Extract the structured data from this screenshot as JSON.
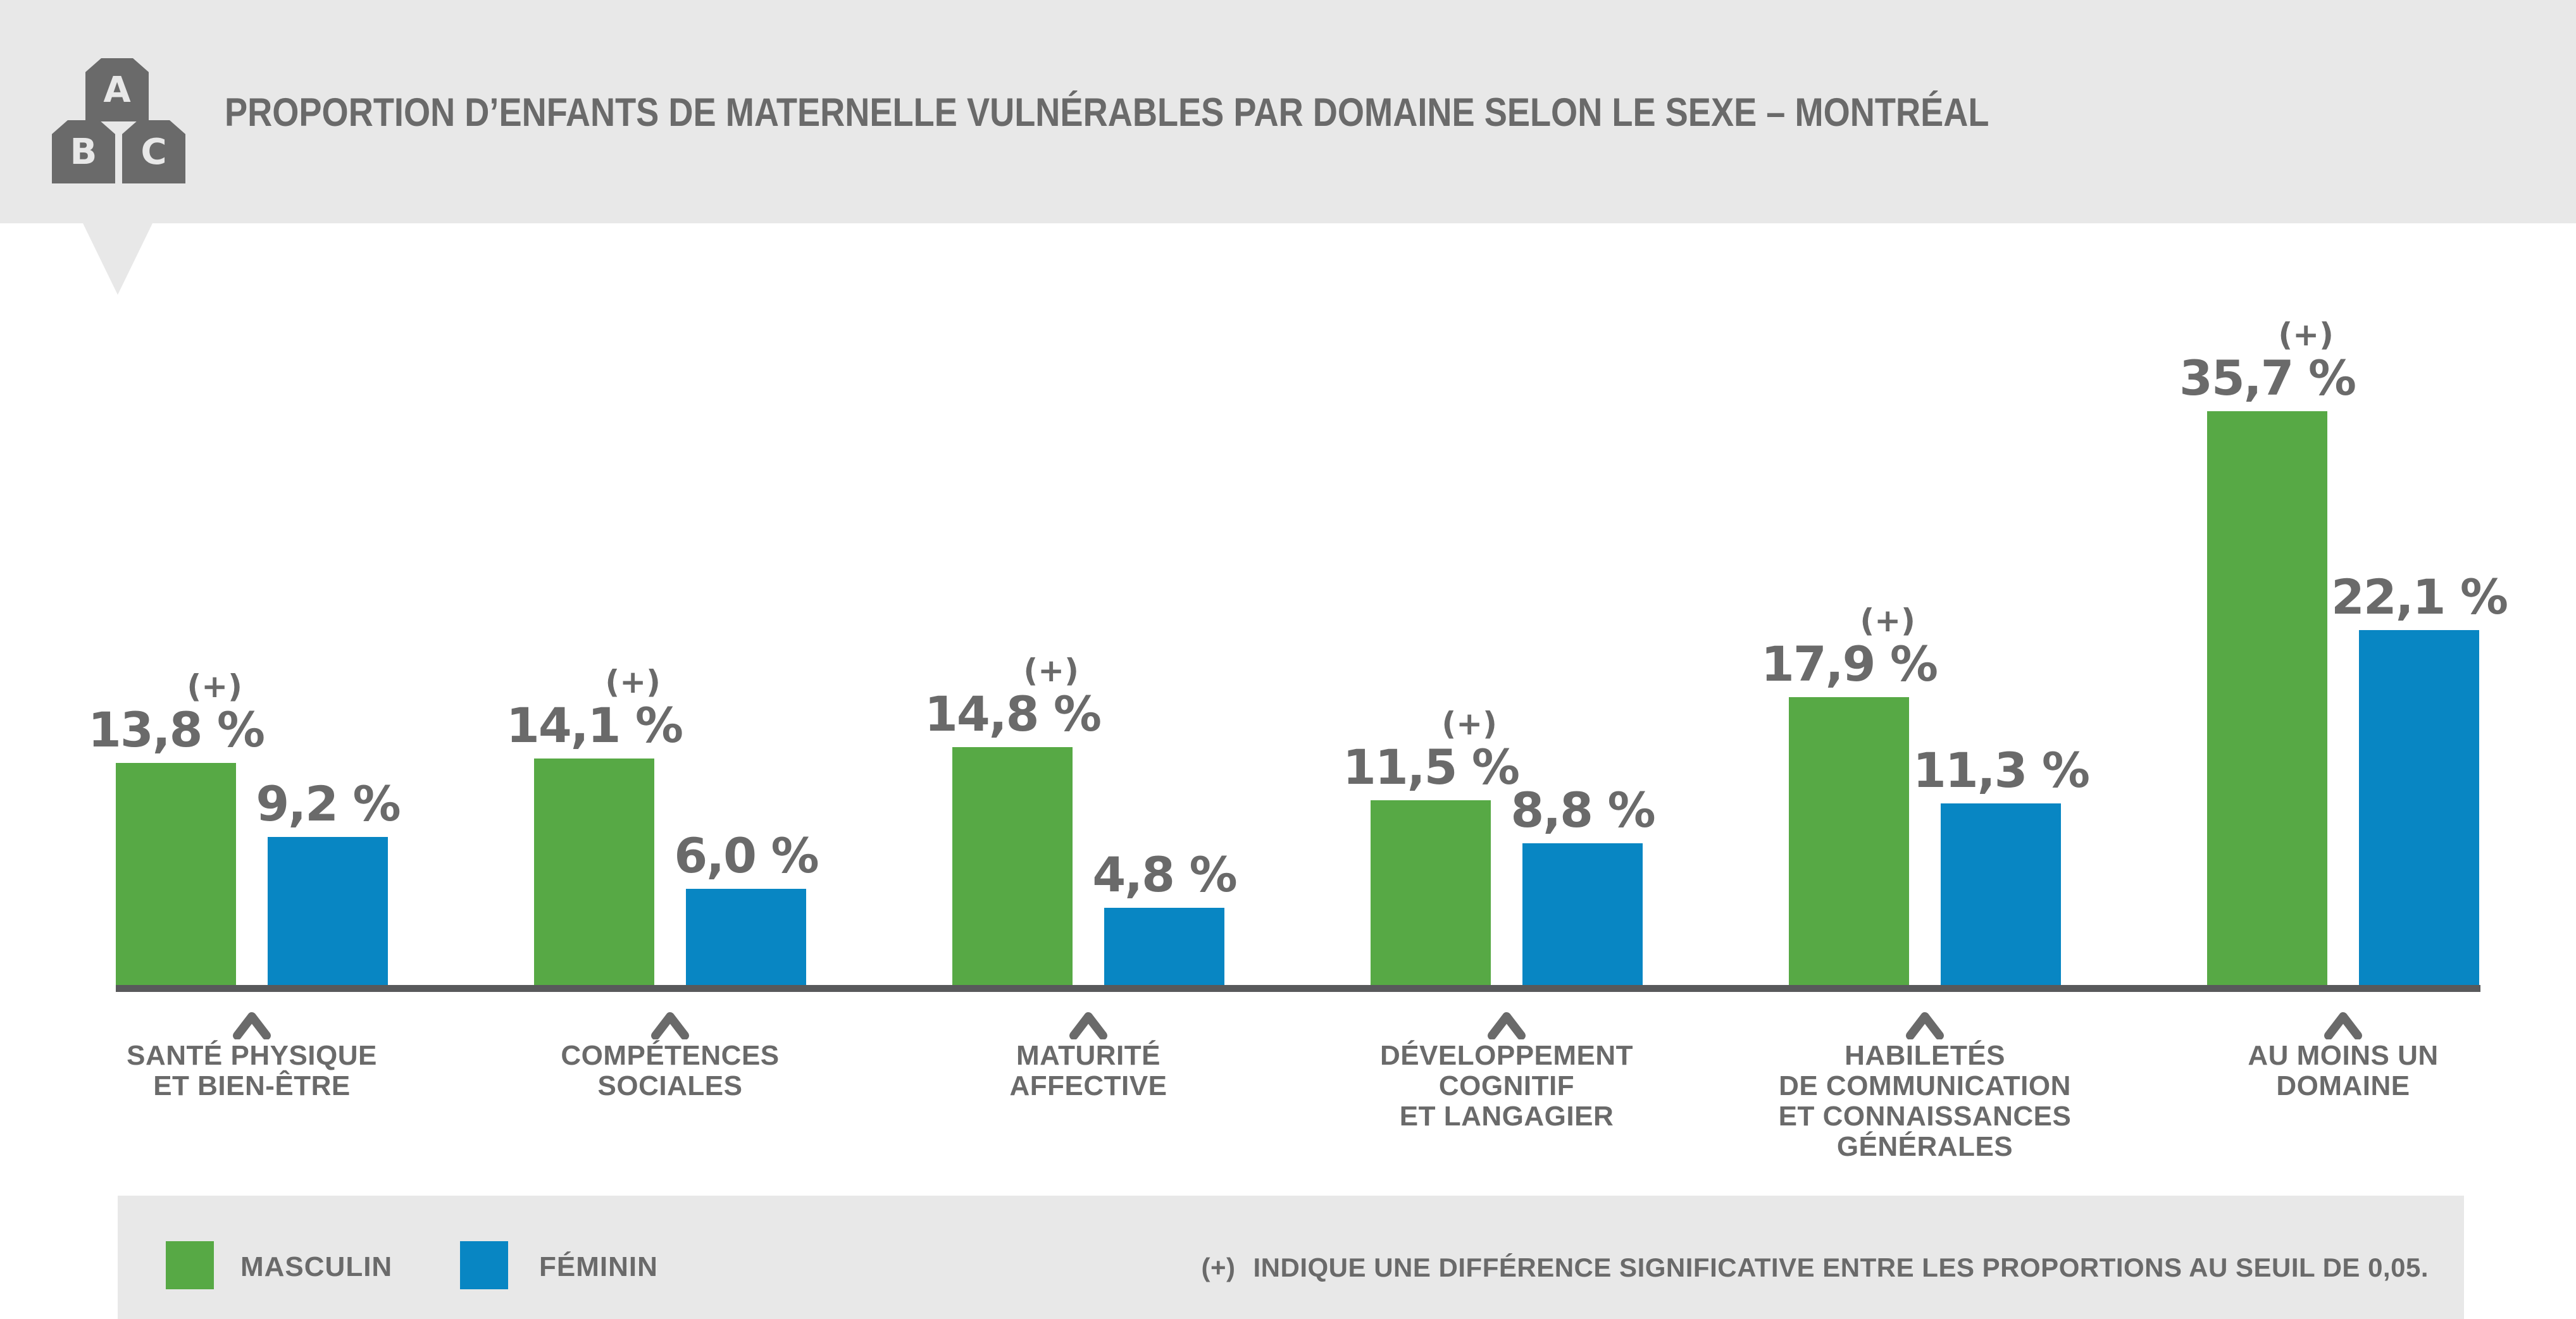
{
  "header": {
    "title": "PROPORTION D’ENFANTS DE MATERNELLE VULNÉRABLES PAR DOMAINE SELON LE SEXE – MONTRÉAL",
    "icon_letters": [
      "A",
      "B",
      "C"
    ]
  },
  "colors": {
    "masculin": "#57a945",
    "feminin": "#0886c3",
    "text_gray": "#6a6a6a",
    "band_bg": "#e8e8e8",
    "axis": "#58595b"
  },
  "chart_data": {
    "type": "bar",
    "title": "PROPORTION D’ENFANTS DE MATERNELLE VULNÉRABLES PAR DOMAINE SELON LE SEXE – MONTRÉAL",
    "xlabel": "",
    "ylabel": "",
    "ylim": [
      0,
      40
    ],
    "grid": false,
    "legend_position": "bottom",
    "significance_marker": "(+)",
    "categories": [
      [
        "SANTÉ PHYSIQUE",
        "ET BIEN-ÊTRE"
      ],
      [
        "COMPÉTENCES",
        "SOCIALES"
      ],
      [
        "MATURITÉ",
        "AFFECTIVE"
      ],
      [
        "DÉVELOPPEMENT",
        "COGNITIF",
        "ET LANGAGIER"
      ],
      [
        "HABILETÉS",
        "DE COMMUNICATION",
        "ET CONNAISSANCES",
        "GÉNÉRALES"
      ],
      [
        "AU MOINS UN",
        "DOMAINE"
      ]
    ],
    "series": [
      {
        "name": "MASCULIN",
        "color": "#57a945",
        "values": [
          13.8,
          14.1,
          14.8,
          11.5,
          17.9,
          35.7
        ],
        "labels": [
          "13,8 %",
          "14,1 %",
          "14,8 %",
          "11,5 %",
          "17,9 %",
          "35,7 %"
        ],
        "significant": [
          true,
          true,
          true,
          true,
          true,
          true
        ]
      },
      {
        "name": "FÉMININ",
        "color": "#0886c3",
        "values": [
          9.2,
          6.0,
          4.8,
          8.8,
          11.3,
          22.1
        ],
        "labels": [
          "9,2 %",
          "6,0 %",
          "4,8 %",
          "8,8 %",
          "11,3 %",
          "22,1 %"
        ],
        "significant": [
          false,
          false,
          false,
          false,
          false,
          false
        ]
      }
    ]
  },
  "legend": {
    "items": [
      {
        "label": "MASCULIN",
        "color": "#57a945"
      },
      {
        "label": "FÉMININ",
        "color": "#0886c3"
      }
    ],
    "note_marker": "(+)",
    "note": "INDIQUE UNE DIFFÉRENCE SIGNIFICATIVE ENTRE LES PROPORTIONS AU SEUIL DE 0,05."
  }
}
